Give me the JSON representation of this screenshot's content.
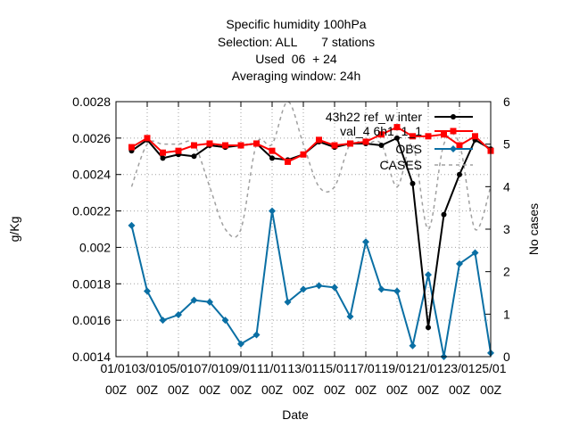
{
  "chart_data": {
    "type": "line",
    "title_lines": [
      "Specific humidity 100hPa",
      "Selection: ALL       7 stations",
      "Used  06  + 24",
      "Averaging window: 24h"
    ],
    "xlabel": "Date",
    "ylabel": "g/Kg",
    "y2label": "No cases",
    "ylim": [
      0.0014,
      0.0028
    ],
    "y2lim": [
      0,
      6
    ],
    "xlim": [
      0,
      24
    ],
    "grid": true,
    "legend_position": "top-right",
    "x_ticks": [
      {
        "x": 0,
        "line1": "01/01",
        "line2": "00Z"
      },
      {
        "x": 2,
        "line1": "03/01",
        "line2": "00Z"
      },
      {
        "x": 4,
        "line1": "05/01",
        "line2": "00Z"
      },
      {
        "x": 6,
        "line1": "07/01",
        "line2": "00Z"
      },
      {
        "x": 8,
        "line1": "09/01",
        "line2": "00Z"
      },
      {
        "x": 10,
        "line1": "11/01",
        "line2": "00Z"
      },
      {
        "x": 12,
        "line1": "13/01",
        "line2": "00Z"
      },
      {
        "x": 14,
        "line1": "15/01",
        "line2": "00Z"
      },
      {
        "x": 16,
        "line1": "17/01",
        "line2": "00Z"
      },
      {
        "x": 18,
        "line1": "19/01",
        "line2": "00Z"
      },
      {
        "x": 20,
        "line1": "21/01",
        "line2": "00Z"
      },
      {
        "x": 22,
        "line1": "23/01",
        "line2": "00Z"
      },
      {
        "x": 24,
        "line1": "25/01",
        "line2": "00Z"
      }
    ],
    "y_ticks": [
      {
        "v": 0.0014,
        "label": "0.0014"
      },
      {
        "v": 0.0016,
        "label": "0.0016"
      },
      {
        "v": 0.0018,
        "label": "0.0018"
      },
      {
        "v": 0.002,
        "label": "0.002"
      },
      {
        "v": 0.0022,
        "label": "0.0022"
      },
      {
        "v": 0.0024,
        "label": "0.0024"
      },
      {
        "v": 0.0026,
        "label": "0.0026"
      },
      {
        "v": 0.0028,
        "label": "0.0028"
      }
    ],
    "y2_ticks": [
      {
        "v": 0,
        "label": "0"
      },
      {
        "v": 1,
        "label": "1"
      },
      {
        "v": 2,
        "label": "2"
      },
      {
        "v": 3,
        "label": "3"
      },
      {
        "v": 4,
        "label": "4"
      },
      {
        "v": 5,
        "label": "5"
      },
      {
        "v": 6,
        "label": "6"
      }
    ],
    "series": [
      {
        "name": "43h22 ref_w inter",
        "color": "#000000",
        "axis": "y",
        "marker": "circle",
        "x": [
          1,
          2,
          3,
          4,
          5,
          6,
          7,
          8,
          9,
          10,
          11,
          12,
          13,
          14,
          15,
          16,
          17,
          18,
          19,
          20,
          21,
          22,
          23,
          24
        ],
        "values": [
          0.00253,
          0.00259,
          0.00249,
          0.00251,
          0.0025,
          0.00256,
          0.00255,
          0.00256,
          0.00257,
          0.00249,
          0.00248,
          0.00251,
          0.00258,
          0.00255,
          0.00257,
          0.00257,
          0.00256,
          0.0026,
          0.00235,
          0.00156,
          0.00218,
          0.0024,
          0.00259,
          0.00254
        ]
      },
      {
        "name": "val_4 6h1_1_1",
        "color": "#ff0000",
        "axis": "y",
        "marker": "square",
        "x": [
          1,
          2,
          3,
          4,
          5,
          6,
          7,
          8,
          9,
          10,
          11,
          12,
          13,
          14,
          15,
          16,
          17,
          18,
          19,
          20,
          21,
          22,
          23,
          24
        ],
        "values": [
          0.00255,
          0.0026,
          0.00252,
          0.00253,
          0.00256,
          0.00257,
          0.00256,
          0.00256,
          0.00257,
          0.00253,
          0.00247,
          0.00251,
          0.00259,
          0.00256,
          0.00257,
          0.00258,
          0.00262,
          0.00266,
          0.00261,
          0.00261,
          0.00262,
          0.00256,
          0.00261,
          0.00253
        ]
      },
      {
        "name": "OBS",
        "color": "#0a6fa4",
        "axis": "y",
        "marker": "diamond",
        "x": [
          1,
          2,
          3,
          4,
          5,
          6,
          7,
          8,
          9,
          10,
          11,
          12,
          13,
          14,
          15,
          16,
          17,
          18,
          19,
          20,
          21,
          22,
          23,
          24
        ],
        "values": [
          0.00212,
          0.00176,
          0.0016,
          0.00163,
          0.00171,
          0.0017,
          0.0016,
          0.00147,
          0.00152,
          0.0022,
          0.0017,
          0.00177,
          0.00179,
          0.00178,
          0.00162,
          0.00203,
          0.00177,
          0.00176,
          0.00146,
          0.00185,
          0.0014,
          0.00191,
          0.00197,
          0.00142
        ]
      },
      {
        "name": "CASES",
        "color": "#a0a0a0",
        "axis": "y2",
        "dashed": true,
        "x": [
          1,
          2,
          3,
          4,
          5,
          6,
          7,
          8,
          9,
          10,
          11,
          12,
          13,
          14,
          15,
          16,
          17,
          18,
          19,
          20,
          21,
          22,
          23,
          24
        ],
        "values": [
          4,
          5,
          5,
          5,
          5,
          4,
          3,
          3,
          5,
          5,
          6,
          5,
          4,
          4,
          5,
          5,
          5,
          4,
          5,
          3,
          5,
          5,
          3,
          4
        ]
      }
    ]
  }
}
